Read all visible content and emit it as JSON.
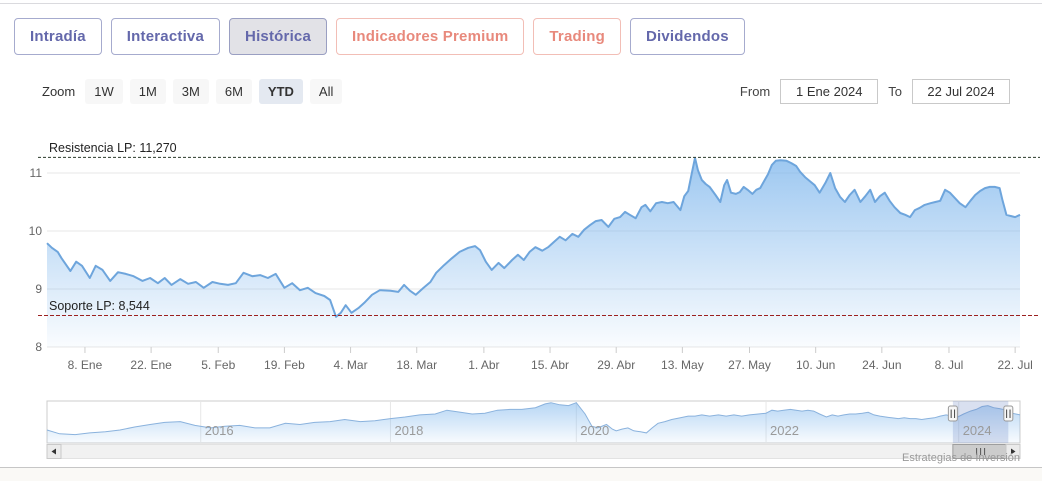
{
  "tabs": [
    {
      "label": "Intradía",
      "variant": "primary",
      "selected": false
    },
    {
      "label": "Interactiva",
      "variant": "primary",
      "selected": false
    },
    {
      "label": "Histórica",
      "variant": "primary",
      "selected": true
    },
    {
      "label": "Indicadores Premium",
      "variant": "premium",
      "selected": false
    },
    {
      "label": "Trading",
      "variant": "premium",
      "selected": false
    },
    {
      "label": "Dividendos",
      "variant": "primary",
      "selected": false
    }
  ],
  "toolbar": {
    "zoom_label": "Zoom",
    "ranges": [
      {
        "label": "1W",
        "selected": false
      },
      {
        "label": "1M",
        "selected": false
      },
      {
        "label": "3M",
        "selected": false
      },
      {
        "label": "6M",
        "selected": false
      },
      {
        "label": "YTD",
        "selected": true
      },
      {
        "label": "All",
        "selected": false
      }
    ],
    "from_label": "From",
    "from_value": "1 Ene 2024",
    "to_label": "To",
    "to_value": "22 Jul 2024"
  },
  "chart_data": {
    "type": "area",
    "title": "",
    "xlabel": "",
    "ylabel": "",
    "x_range_labels": [
      "1 Ene 2024",
      "22 Jul 2024"
    ],
    "ylim": [
      8,
      12
    ],
    "y_ticks": [
      {
        "label": "8",
        "value": 8
      },
      {
        "label": "9",
        "value": 9
      },
      {
        "label": "10",
        "value": 10
      },
      {
        "label": "11",
        "value": 11
      }
    ],
    "x_ticks": [
      {
        "label": "8. Ene",
        "f": 0.039
      },
      {
        "label": "22. Ene",
        "f": 0.107
      },
      {
        "label": "5. Feb",
        "f": 0.176
      },
      {
        "label": "19. Feb",
        "f": 0.244
      },
      {
        "label": "4. Mar",
        "f": 0.312
      },
      {
        "label": "18. Mar",
        "f": 0.38
      },
      {
        "label": "1. Abr",
        "f": 0.449
      },
      {
        "label": "15. Abr",
        "f": 0.517
      },
      {
        "label": "29. Abr",
        "f": 0.585
      },
      {
        "label": "13. May",
        "f": 0.653
      },
      {
        "label": "27. May",
        "f": 0.722
      },
      {
        "label": "10. Jun",
        "f": 0.79
      },
      {
        "label": "24. Jun",
        "f": 0.858
      },
      {
        "label": "8. Jul",
        "f": 0.927
      },
      {
        "label": "22. Jul",
        "f": 0.995
      }
    ],
    "plotlines": [
      {
        "label": "Resistencia LP: 11,270",
        "value": 11.27,
        "color": "#2b3a2b",
        "dash": "3,2"
      },
      {
        "label": "Soporte LP: 8,544",
        "value": 8.544,
        "color": "#9b2020",
        "dash": "4,2"
      }
    ],
    "series": {
      "name": "price",
      "line_color": "#6ea5dc",
      "fill_color": "#7cb5ec",
      "points": [
        [
          0,
          9.79
        ],
        [
          0.005,
          9.71
        ],
        [
          0.011,
          9.64
        ],
        [
          0.015,
          9.53
        ],
        [
          0.024,
          9.31
        ],
        [
          0.03,
          9.47
        ],
        [
          0.036,
          9.4
        ],
        [
          0.044,
          9.19
        ],
        [
          0.05,
          9.4
        ],
        [
          0.057,
          9.33
        ],
        [
          0.065,
          9.14
        ],
        [
          0.073,
          9.29
        ],
        [
          0.081,
          9.26
        ],
        [
          0.089,
          9.22
        ],
        [
          0.098,
          9.14
        ],
        [
          0.106,
          9.19
        ],
        [
          0.114,
          9.1
        ],
        [
          0.121,
          9.19
        ],
        [
          0.128,
          9.07
        ],
        [
          0.137,
          9.17
        ],
        [
          0.145,
          9.09
        ],
        [
          0.153,
          9.12
        ],
        [
          0.161,
          9.02
        ],
        [
          0.17,
          9.12
        ],
        [
          0.178,
          9.09
        ],
        [
          0.186,
          9.07
        ],
        [
          0.194,
          9.1
        ],
        [
          0.202,
          9.28
        ],
        [
          0.211,
          9.22
        ],
        [
          0.219,
          9.24
        ],
        [
          0.227,
          9.19
        ],
        [
          0.235,
          9.26
        ],
        [
          0.244,
          9.02
        ],
        [
          0.252,
          9.1
        ],
        [
          0.26,
          8.98
        ],
        [
          0.268,
          9.02
        ],
        [
          0.276,
          8.93
        ],
        [
          0.285,
          8.88
        ],
        [
          0.291,
          8.81
        ],
        [
          0.297,
          8.52
        ],
        [
          0.302,
          8.59
        ],
        [
          0.307,
          8.72
        ],
        [
          0.313,
          8.59
        ],
        [
          0.32,
          8.67
        ],
        [
          0.326,
          8.76
        ],
        [
          0.334,
          8.9
        ],
        [
          0.342,
          8.98
        ],
        [
          0.353,
          8.97
        ],
        [
          0.361,
          8.95
        ],
        [
          0.367,
          9.07
        ],
        [
          0.373,
          8.97
        ],
        [
          0.379,
          8.9
        ],
        [
          0.387,
          9.02
        ],
        [
          0.394,
          9.12
        ],
        [
          0.4,
          9.28
        ],
        [
          0.408,
          9.41
        ],
        [
          0.416,
          9.53
        ],
        [
          0.424,
          9.64
        ],
        [
          0.433,
          9.71
        ],
        [
          0.44,
          9.74
        ],
        [
          0.445,
          9.67
        ],
        [
          0.451,
          9.47
        ],
        [
          0.457,
          9.33
        ],
        [
          0.464,
          9.45
        ],
        [
          0.47,
          9.36
        ],
        [
          0.478,
          9.5
        ],
        [
          0.484,
          9.59
        ],
        [
          0.49,
          9.5
        ],
        [
          0.496,
          9.64
        ],
        [
          0.502,
          9.72
        ],
        [
          0.509,
          9.66
        ],
        [
          0.515,
          9.72
        ],
        [
          0.521,
          9.81
        ],
        [
          0.527,
          9.9
        ],
        [
          0.533,
          9.84
        ],
        [
          0.54,
          9.95
        ],
        [
          0.546,
          9.9
        ],
        [
          0.552,
          10.02
        ],
        [
          0.558,
          10.1
        ],
        [
          0.564,
          10.17
        ],
        [
          0.57,
          10.19
        ],
        [
          0.577,
          10.07
        ],
        [
          0.583,
          10.21
        ],
        [
          0.589,
          10.24
        ],
        [
          0.594,
          10.33
        ],
        [
          0.599,
          10.28
        ],
        [
          0.605,
          10.22
        ],
        [
          0.611,
          10.41
        ],
        [
          0.615,
          10.45
        ],
        [
          0.62,
          10.34
        ],
        [
          0.626,
          10.48
        ],
        [
          0.632,
          10.5
        ],
        [
          0.638,
          10.48
        ],
        [
          0.644,
          10.5
        ],
        [
          0.651,
          10.36
        ],
        [
          0.655,
          10.6
        ],
        [
          0.659,
          10.69
        ],
        [
          0.663,
          11.02
        ],
        [
          0.666,
          11.26
        ],
        [
          0.669,
          11.05
        ],
        [
          0.673,
          10.88
        ],
        [
          0.677,
          10.81
        ],
        [
          0.681,
          10.76
        ],
        [
          0.687,
          10.62
        ],
        [
          0.692,
          10.5
        ],
        [
          0.696,
          10.79
        ],
        [
          0.699,
          10.88
        ],
        [
          0.703,
          10.66
        ],
        [
          0.708,
          10.64
        ],
        [
          0.712,
          10.67
        ],
        [
          0.716,
          10.76
        ],
        [
          0.72,
          10.71
        ],
        [
          0.725,
          10.64
        ],
        [
          0.729,
          10.71
        ],
        [
          0.733,
          10.74
        ],
        [
          0.737,
          10.86
        ],
        [
          0.741,
          10.98
        ],
        [
          0.745,
          11.14
        ],
        [
          0.749,
          11.21
        ],
        [
          0.754,
          11.22
        ],
        [
          0.76,
          11.21
        ],
        [
          0.765,
          11.17
        ],
        [
          0.77,
          11.12
        ],
        [
          0.774,
          11.02
        ],
        [
          0.779,
          10.93
        ],
        [
          0.784,
          10.86
        ],
        [
          0.789,
          10.79
        ],
        [
          0.794,
          10.66
        ],
        [
          0.8,
          10.83
        ],
        [
          0.805,
          11.0
        ],
        [
          0.81,
          10.74
        ],
        [
          0.815,
          10.59
        ],
        [
          0.82,
          10.5
        ],
        [
          0.825,
          10.62
        ],
        [
          0.83,
          10.71
        ],
        [
          0.836,
          10.5
        ],
        [
          0.841,
          10.6
        ],
        [
          0.846,
          10.71
        ],
        [
          0.851,
          10.5
        ],
        [
          0.856,
          10.6
        ],
        [
          0.861,
          10.66
        ],
        [
          0.866,
          10.52
        ],
        [
          0.871,
          10.41
        ],
        [
          0.877,
          10.31
        ],
        [
          0.882,
          10.28
        ],
        [
          0.887,
          10.24
        ],
        [
          0.892,
          10.36
        ],
        [
          0.897,
          10.4
        ],
        [
          0.902,
          10.45
        ],
        [
          0.908,
          10.48
        ],
        [
          0.913,
          10.5
        ],
        [
          0.918,
          10.52
        ],
        [
          0.923,
          10.71
        ],
        [
          0.928,
          10.66
        ],
        [
          0.933,
          10.57
        ],
        [
          0.938,
          10.48
        ],
        [
          0.944,
          10.41
        ],
        [
          0.949,
          10.52
        ],
        [
          0.954,
          10.62
        ],
        [
          0.959,
          10.69
        ],
        [
          0.964,
          10.74
        ],
        [
          0.969,
          10.76
        ],
        [
          0.974,
          10.76
        ],
        [
          0.979,
          10.74
        ],
        [
          0.982,
          10.53
        ],
        [
          0.986,
          10.28
        ],
        [
          0.99,
          10.26
        ],
        [
          0.995,
          10.24
        ],
        [
          1,
          10.28
        ]
      ]
    },
    "navigator": {
      "years": [
        {
          "label": "2016",
          "f": 0.158
        },
        {
          "label": "2018",
          "f": 0.353
        },
        {
          "label": "2020",
          "f": 0.544
        },
        {
          "label": "2022",
          "f": 0.739
        },
        {
          "label": "2024",
          "f": 0.937
        }
      ],
      "selection": [
        0.931,
        0.988
      ],
      "mask_color": "rgba(102,133,194,0.25)",
      "points": [
        [
          0,
          0.31
        ],
        [
          0.013,
          0.22
        ],
        [
          0.029,
          0.2
        ],
        [
          0.044,
          0.24
        ],
        [
          0.06,
          0.27
        ],
        [
          0.075,
          0.31
        ],
        [
          0.09,
          0.38
        ],
        [
          0.106,
          0.44
        ],
        [
          0.121,
          0.49
        ],
        [
          0.137,
          0.51
        ],
        [
          0.152,
          0.42
        ],
        [
          0.168,
          0.36
        ],
        [
          0.183,
          0.4
        ],
        [
          0.198,
          0.42
        ],
        [
          0.214,
          0.36
        ],
        [
          0.229,
          0.36
        ],
        [
          0.245,
          0.47
        ],
        [
          0.26,
          0.44
        ],
        [
          0.275,
          0.49
        ],
        [
          0.291,
          0.51
        ],
        [
          0.306,
          0.56
        ],
        [
          0.322,
          0.51
        ],
        [
          0.337,
          0.53
        ],
        [
          0.353,
          0.58
        ],
        [
          0.368,
          0.62
        ],
        [
          0.383,
          0.67
        ],
        [
          0.399,
          0.69
        ],
        [
          0.411,
          0.78
        ],
        [
          0.425,
          0.73
        ],
        [
          0.437,
          0.69
        ],
        [
          0.45,
          0.71
        ],
        [
          0.463,
          0.78
        ],
        [
          0.476,
          0.8
        ],
        [
          0.488,
          0.8
        ],
        [
          0.502,
          0.84
        ],
        [
          0.512,
          0.93
        ],
        [
          0.518,
          0.96
        ],
        [
          0.527,
          0.91
        ],
        [
          0.536,
          0.89
        ],
        [
          0.544,
          0.96
        ],
        [
          0.553,
          0.69
        ],
        [
          0.56,
          0.4
        ],
        [
          0.566,
          0.36
        ],
        [
          0.575,
          0.44
        ],
        [
          0.581,
          0.33
        ],
        [
          0.585,
          0.29
        ],
        [
          0.591,
          0.33
        ],
        [
          0.597,
          0.36
        ],
        [
          0.603,
          0.29
        ],
        [
          0.61,
          0.27
        ],
        [
          0.616,
          0.24
        ],
        [
          0.622,
          0.36
        ],
        [
          0.628,
          0.47
        ],
        [
          0.635,
          0.51
        ],
        [
          0.642,
          0.56
        ],
        [
          0.651,
          0.6
        ],
        [
          0.659,
          0.64
        ],
        [
          0.666,
          0.64
        ],
        [
          0.673,
          0.67
        ],
        [
          0.681,
          0.64
        ],
        [
          0.69,
          0.67
        ],
        [
          0.698,
          0.64
        ],
        [
          0.706,
          0.67
        ],
        [
          0.714,
          0.64
        ],
        [
          0.722,
          0.67
        ],
        [
          0.731,
          0.69
        ],
        [
          0.739,
          0.71
        ],
        [
          0.745,
          0.78
        ],
        [
          0.751,
          0.76
        ],
        [
          0.757,
          0.78
        ],
        [
          0.764,
          0.8
        ],
        [
          0.77,
          0.78
        ],
        [
          0.776,
          0.76
        ],
        [
          0.782,
          0.78
        ],
        [
          0.788,
          0.76
        ],
        [
          0.794,
          0.69
        ],
        [
          0.801,
          0.62
        ],
        [
          0.807,
          0.67
        ],
        [
          0.813,
          0.64
        ],
        [
          0.819,
          0.67
        ],
        [
          0.825,
          0.69
        ],
        [
          0.831,
          0.69
        ],
        [
          0.838,
          0.71
        ],
        [
          0.844,
          0.73
        ],
        [
          0.85,
          0.67
        ],
        [
          0.856,
          0.64
        ],
        [
          0.862,
          0.62
        ],
        [
          0.868,
          0.6
        ],
        [
          0.875,
          0.58
        ],
        [
          0.881,
          0.6
        ],
        [
          0.887,
          0.58
        ],
        [
          0.893,
          0.58
        ],
        [
          0.899,
          0.56
        ],
        [
          0.905,
          0.58
        ],
        [
          0.912,
          0.6
        ],
        [
          0.918,
          0.64
        ],
        [
          0.924,
          0.67
        ],
        [
          0.93,
          0.64
        ],
        [
          0.936,
          0.62
        ],
        [
          0.942,
          0.69
        ],
        [
          0.949,
          0.76
        ],
        [
          0.955,
          0.8
        ],
        [
          0.961,
          0.87
        ],
        [
          0.967,
          0.89
        ],
        [
          0.973,
          0.84
        ],
        [
          0.979,
          0.82
        ],
        [
          0.986,
          0.78
        ],
        [
          0.992,
          0.71
        ],
        [
          1,
          0.67
        ]
      ]
    },
    "grid_color": "#e7e7e7",
    "legend": "none"
  },
  "footer": {
    "credits": "Estrategias de Inversión"
  }
}
